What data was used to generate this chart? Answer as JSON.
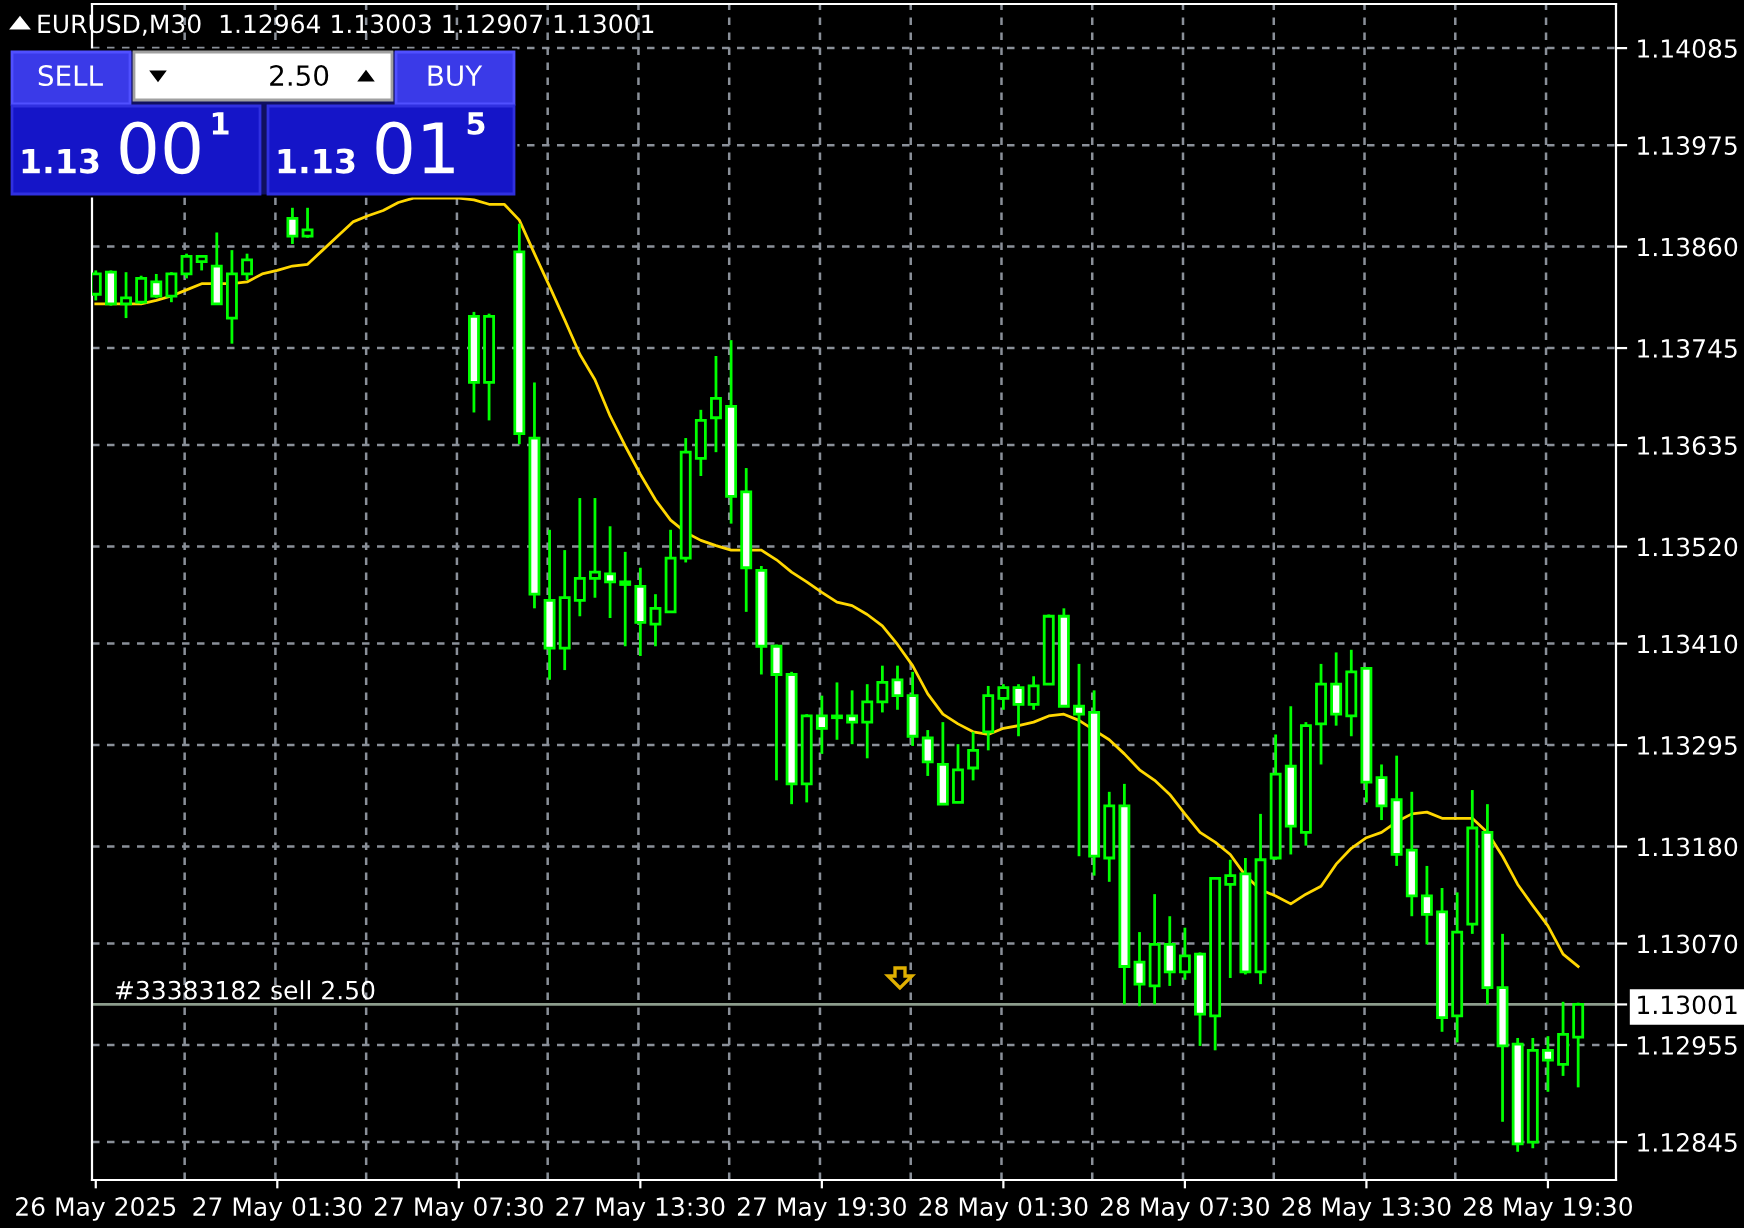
{
  "chart_data": {
    "type": "candlestick",
    "title": "EURUSD,M30  1.12964 1.13003 1.12907 1.13001",
    "categories": [
      "26 May 2025",
      null,
      null,
      null,
      null,
      null,
      null,
      null,
      null,
      null,
      null,
      null,
      "27 May 01:30",
      null,
      null,
      null,
      null,
      null,
      null,
      null,
      null,
      null,
      null,
      null,
      "27 May 07:30",
      null,
      null,
      null,
      null,
      null,
      null,
      null,
      null,
      null,
      null,
      null,
      "27 May 13:30",
      null,
      null,
      null,
      null,
      null,
      null,
      null,
      null,
      null,
      null,
      null,
      "27 May 19:30",
      null,
      null,
      null,
      null,
      null,
      null,
      null,
      null,
      null,
      null,
      null,
      "28 May 01:30",
      null,
      null,
      null,
      null,
      null,
      null,
      null,
      null,
      null,
      null,
      null,
      "28 May 07:30",
      null,
      null,
      null,
      null,
      null,
      null,
      null,
      null,
      null,
      null,
      null,
      "28 May 13:30",
      null,
      null,
      null,
      null,
      null,
      null,
      null,
      null,
      null,
      null,
      null,
      "28 May 19:30",
      null,
      null
    ],
    "series": [
      {
        "type": "candlestick",
        "color": "#00ff00",
        "ohlc": [
          [
            1.13806,
            1.13833,
            1.13799,
            1.13829
          ],
          [
            1.13831,
            1.13833,
            1.13793,
            1.13795
          ],
          [
            1.13795,
            1.13831,
            1.13779,
            1.13802
          ],
          [
            1.13797,
            1.13827,
            1.13795,
            1.13824
          ],
          [
            1.1382,
            1.13829,
            1.13802,
            1.13804
          ],
          [
            1.13804,
            1.13831,
            1.13797,
            1.13829
          ],
          [
            1.13829,
            1.13852,
            1.13824,
            1.13849
          ],
          [
            1.13843,
            1.13849,
            1.13833,
            1.13849
          ],
          [
            1.13838,
            1.13876,
            1.13795,
            1.13795
          ],
          [
            1.13779,
            1.13856,
            1.1375,
            1.13829
          ],
          [
            1.13829,
            1.13852,
            1.13822,
            1.13845
          ],
          null,
          null,
          [
            1.13892,
            1.13904,
            1.13863,
            1.13872
          ],
          [
            1.13872,
            1.13904,
            1.1387,
            1.13879
          ],
          null,
          null,
          null,
          null,
          null,
          null,
          null,
          null,
          null,
          null,
          [
            1.13781,
            1.13786,
            1.13672,
            1.13706
          ],
          [
            1.13706,
            1.13784,
            1.13663,
            1.13781
          ],
          null,
          [
            1.13854,
            1.13886,
            1.13636,
            1.13648
          ],
          [
            1.13643,
            1.13706,
            1.1345,
            1.13466
          ],
          [
            1.13459,
            1.13539,
            1.13369,
            1.13405
          ],
          [
            1.13405,
            1.13516,
            1.1338,
            1.13462
          ],
          [
            1.13459,
            1.13575,
            1.13441,
            1.13484
          ],
          [
            1.13484,
            1.13575,
            1.13462,
            1.13491
          ],
          [
            1.13489,
            1.13543,
            1.13439,
            1.1348
          ],
          [
            1.1348,
            1.13514,
            1.13407,
            1.13477
          ],
          [
            1.13475,
            1.13496,
            1.13396,
            1.13434
          ],
          [
            1.13432,
            1.13466,
            1.13407,
            1.1345
          ],
          [
            1.13446,
            1.13539,
            1.13446,
            1.13507
          ],
          [
            1.13507,
            1.13643,
            1.13502,
            1.13627
          ],
          [
            1.1362,
            1.13675,
            1.136,
            1.13663
          ],
          [
            1.13666,
            1.13736,
            1.13627,
            1.13688
          ],
          [
            1.13679,
            1.13754,
            1.13546,
            1.13577
          ],
          [
            1.13582,
            1.13609,
            1.13446,
            1.13496
          ],
          [
            1.13493,
            1.13498,
            1.13375,
            1.13407
          ],
          [
            1.13407,
            1.13409,
            1.13255,
            1.13375
          ],
          [
            1.13375,
            1.13378,
            1.13228,
            1.13251
          ],
          [
            1.13251,
            1.1333,
            1.1323,
            1.13328
          ],
          [
            1.13328,
            1.13351,
            1.13285,
            1.13314
          ],
          [
            1.13328,
            1.13366,
            1.13301,
            1.13326
          ],
          [
            1.13328,
            1.13357,
            1.13296,
            1.13321
          ],
          [
            1.13321,
            1.13364,
            1.1328,
            1.13344
          ],
          [
            1.13344,
            1.13385,
            1.13332,
            1.13366
          ],
          [
            1.13369,
            1.13385,
            1.13335,
            1.13351
          ],
          [
            1.13351,
            1.13378,
            1.13294,
            1.13305
          ],
          [
            1.13303,
            1.13312,
            1.1326,
            1.13276
          ],
          [
            1.13273,
            1.13321,
            1.13228,
            1.13228
          ],
          [
            1.1323,
            1.13296,
            1.1323,
            1.13267
          ],
          [
            1.13269,
            1.1331,
            1.13255,
            1.13289
          ],
          [
            1.1331,
            1.13362,
            1.13289,
            1.13351
          ],
          [
            1.13348,
            1.13364,
            1.13335,
            1.1336
          ],
          [
            1.1336,
            1.13364,
            1.13305,
            1.13341
          ],
          [
            1.13341,
            1.13373,
            1.13335,
            1.13362
          ],
          [
            1.13364,
            1.13443,
            1.13364,
            1.13441
          ],
          [
            1.13441,
            1.1345,
            1.13339,
            1.13339
          ],
          [
            1.13339,
            1.13387,
            1.13169,
            1.1333
          ],
          [
            1.13332,
            1.13357,
            1.13147,
            1.13169
          ],
          [
            1.13167,
            1.13242,
            1.1314,
            1.13226
          ],
          [
            1.13226,
            1.13251,
            1.13001,
            1.13044
          ],
          [
            1.13049,
            1.13083,
            1.12999,
            1.13024
          ],
          [
            1.13022,
            1.13126,
            1.13001,
            1.13069
          ],
          [
            1.13069,
            1.13101,
            1.13022,
            1.13038
          ],
          [
            1.13038,
            1.13088,
            1.13029,
            1.13056
          ],
          [
            1.13058,
            1.1306,
            1.12954,
            1.1299
          ],
          [
            1.12988,
            1.13144,
            1.12949,
            1.13144
          ],
          [
            1.13137,
            1.13165,
            1.13031,
            1.13147
          ],
          [
            1.13149,
            1.13167,
            1.13035,
            1.13038
          ],
          [
            1.13038,
            1.13217,
            1.13024,
            1.13165
          ],
          [
            1.13167,
            1.13307,
            1.13165,
            1.13262
          ],
          [
            1.13271,
            1.13339,
            1.13171,
            1.13203
          ],
          [
            1.13196,
            1.13321,
            1.13181,
            1.13317
          ],
          [
            1.13319,
            1.13387,
            1.13273,
            1.13364
          ],
          [
            1.13364,
            1.134,
            1.13317,
            1.1333
          ],
          [
            1.13328,
            1.13403,
            1.13305,
            1.13378
          ],
          [
            1.13382,
            1.13382,
            1.1323,
            1.13253
          ],
          [
            1.13258,
            1.13273,
            1.1321,
            1.13226
          ],
          [
            1.13233,
            1.13283,
            1.13158,
            1.13171
          ],
          [
            1.13176,
            1.13242,
            1.13101,
            1.13124
          ],
          [
            1.13124,
            1.13158,
            1.13069,
            1.13103
          ],
          [
            1.13106,
            1.13133,
            1.1297,
            1.12986
          ],
          [
            1.12988,
            1.13128,
            1.12958,
            1.13083
          ],
          [
            1.13092,
            1.13244,
            1.13081,
            1.13201
          ],
          [
            1.13196,
            1.13228,
            1.13001,
            1.1302
          ],
          [
            1.1302,
            1.13081,
            1.12868,
            1.12954
          ],
          [
            1.12956,
            1.12963,
            1.12834,
            1.12843
          ],
          [
            1.12845,
            1.12963,
            1.12838,
            1.12949
          ],
          [
            1.12949,
            1.12965,
            1.12902,
            1.12938
          ],
          [
            1.12933,
            1.13004,
            1.1292,
            1.12967
          ],
          [
            1.12964,
            1.13003,
            1.12907,
            1.13001
          ]
        ]
      },
      {
        "type": "line",
        "color": "#ffd700",
        "values": [
          1.13795,
          1.13795,
          1.13795,
          1.13795,
          1.13799,
          1.13804,
          1.13811,
          1.13818,
          1.13818,
          1.13818,
          1.1382,
          1.13829,
          1.13833,
          1.13838,
          1.1384,
          1.13856,
          1.13872,
          1.13888,
          1.13895,
          1.13901,
          1.1391,
          1.13915,
          1.13915,
          1.13915,
          1.13915,
          1.13913,
          1.13908,
          1.13908,
          1.1389,
          1.13852,
          1.13815,
          1.13777,
          1.13738,
          1.13709,
          1.13668,
          1.13634,
          1.13602,
          1.13573,
          1.1355,
          1.13536,
          1.13527,
          1.13521,
          1.13516,
          1.13516,
          1.13516,
          1.13505,
          1.13491,
          1.1348,
          1.13468,
          1.13457,
          1.13453,
          1.13443,
          1.1343,
          1.13409,
          1.13385,
          1.13353,
          1.1333,
          1.13319,
          1.1331,
          1.13307,
          1.13314,
          1.13317,
          1.13321,
          1.13328,
          1.1333,
          1.13323,
          1.13312,
          1.13301,
          1.13285,
          1.13267,
          1.13255,
          1.13239,
          1.13217,
          1.13196,
          1.13185,
          1.13171,
          1.13147,
          1.13131,
          1.13124,
          1.13115,
          1.13126,
          1.13135,
          1.1316,
          1.13178,
          1.1319,
          1.13196,
          1.13208,
          1.13217,
          1.13219,
          1.13212,
          1.13212,
          1.13212,
          1.13196,
          1.13169,
          1.13137,
          1.13113,
          1.1309,
          1.13058,
          1.13044
        ]
      }
    ],
    "ylim": [
      1.12802,
      1.14135
    ],
    "yticks": [
      {
        "value": 1.14085,
        "label": "1.14085"
      },
      {
        "value": 1.13975,
        "label": "1.13975"
      },
      {
        "value": 1.1386,
        "label": "1.13860"
      },
      {
        "value": 1.13745,
        "label": "1.13745"
      },
      {
        "value": 1.13635,
        "label": "1.13635"
      },
      {
        "value": 1.1352,
        "label": "1.13520"
      },
      {
        "value": 1.1341,
        "label": "1.13410"
      },
      {
        "value": 1.13295,
        "label": "1.13295"
      },
      {
        "value": 1.1318,
        "label": "1.13180"
      },
      {
        "value": 1.1307,
        "label": "1.13070"
      },
      {
        "value": 1.13001,
        "label": "1.13001"
      },
      {
        "value": 1.12955,
        "label": "1.12955"
      },
      {
        "value": 1.12845,
        "label": "1.12845"
      }
    ],
    "grid": true,
    "ref_lines": [
      {
        "axis": "y",
        "value": 1.13001,
        "label": "#33383182 sell 2.50",
        "color": "#8c9c8c"
      }
    ],
    "annotations": [
      "SELL",
      "2.50",
      "BUY",
      "1.13",
      "00",
      "1",
      "1.13",
      "01",
      "5"
    ]
  }
}
